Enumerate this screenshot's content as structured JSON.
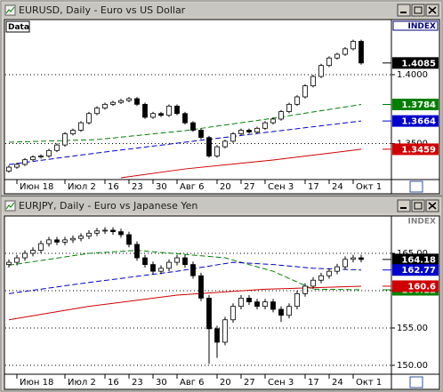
{
  "chart_data": [
    {
      "type": "candlestick",
      "title": "EURUSD, Daily - Euro vs US Dollar",
      "data_label": "Data",
      "axis_label": "INDEX",
      "categories": [
        null,
        "Июн 18",
        null,
        null,
        null,
        null,
        null,
        "Июл 2",
        null,
        null,
        null,
        null,
        "16",
        null,
        null,
        "23",
        null,
        null,
        "30",
        null,
        null,
        "Авг 6",
        null,
        null,
        null,
        null,
        "20",
        null,
        null,
        "27",
        null,
        null,
        "Сен 3",
        null,
        null,
        null,
        null,
        "17",
        null,
        null,
        "24",
        null,
        null,
        "Окт 1",
        null
      ],
      "open": [
        1.33,
        1.3329,
        1.3349,
        1.3383,
        1.3403,
        1.341,
        1.345,
        1.349,
        1.3571,
        1.3597,
        1.3651,
        1.3718,
        1.3758,
        1.3785,
        1.3799,
        1.3812,
        1.3826,
        1.3785,
        1.3691,
        1.3718,
        1.3705,
        1.3772,
        1.3718,
        1.3651,
        1.3597,
        1.3544,
        1.341,
        1.3477,
        1.3517,
        1.3571,
        1.3597,
        1.3584,
        1.3611,
        1.3651,
        1.3678,
        1.3732,
        1.3785,
        1.3839,
        1.3919,
        1.3987,
        1.4067,
        1.4121,
        1.4148,
        1.4188,
        1.4242
      ],
      "high": [
        1.3341,
        1.3361,
        1.3395,
        1.3415,
        1.3422,
        1.3462,
        1.3502,
        1.3583,
        1.3609,
        1.3663,
        1.373,
        1.377,
        1.3797,
        1.3811,
        1.3824,
        1.3838,
        1.3838,
        1.3797,
        1.373,
        1.373,
        1.3784,
        1.3784,
        1.373,
        1.3663,
        1.3609,
        1.3556,
        1.3489,
        1.3529,
        1.3583,
        1.3609,
        1.3609,
        1.3623,
        1.3663,
        1.369,
        1.3744,
        1.3797,
        1.3851,
        1.3931,
        1.3999,
        1.4079,
        1.4133,
        1.416,
        1.42,
        1.4254,
        1.4254
      ],
      "low": [
        1.3288,
        1.3317,
        1.3337,
        1.3371,
        1.3391,
        1.3398,
        1.3438,
        1.3478,
        1.3559,
        1.3585,
        1.3639,
        1.3706,
        1.3746,
        1.3773,
        1.3787,
        1.38,
        1.3773,
        1.3679,
        1.3679,
        1.3693,
        1.3693,
        1.3706,
        1.3639,
        1.3585,
        1.3532,
        1.3398,
        1.3398,
        1.3465,
        1.3505,
        1.3559,
        1.3572,
        1.3572,
        1.3599,
        1.3639,
        1.3666,
        1.372,
        1.3773,
        1.3827,
        1.3907,
        1.3975,
        1.4055,
        1.4109,
        1.4136,
        1.4176,
        1.4073
      ],
      "close": [
        1.3329,
        1.3349,
        1.3383,
        1.3403,
        1.341,
        1.345,
        1.349,
        1.3571,
        1.3597,
        1.3651,
        1.3718,
        1.3758,
        1.3785,
        1.3799,
        1.3812,
        1.3826,
        1.3785,
        1.3691,
        1.3718,
        1.3705,
        1.3772,
        1.3718,
        1.3651,
        1.3597,
        1.3544,
        1.341,
        1.3477,
        1.3517,
        1.3571,
        1.3597,
        1.3584,
        1.3611,
        1.3651,
        1.3678,
        1.3732,
        1.3785,
        1.3839,
        1.3919,
        1.3987,
        1.4067,
        1.4121,
        1.4148,
        1.4188,
        1.4242,
        1.4085
      ],
      "up_color": "#ffffff",
      "down_color": "#000000",
      "last_color": "#000000",
      "moving_averages": [
        {
          "color": "#008000",
          "dashed": true,
          "x": [
            0,
            11,
            22,
            33,
            44
          ],
          "values": [
            1.351,
            1.3529,
            1.3594,
            1.3684,
            1.3784
          ]
        },
        {
          "color": "#0000cc",
          "dashed": true,
          "x": [
            0,
            11,
            22,
            33,
            44
          ],
          "values": [
            1.3348,
            1.3432,
            1.351,
            1.3587,
            1.3664
          ]
        },
        {
          "color": "#d00000",
          "dashed": false,
          "x": [
            14,
            22,
            33,
            44
          ],
          "values": [
            1.3252,
            1.3316,
            1.3381,
            1.3459
          ]
        }
      ],
      "ylim": [
        1.3239,
        1.44
      ],
      "yticks": [
        {
          "value": 1.35,
          "label": "1.3500"
        },
        {
          "value": 1.4,
          "label": "1.4000"
        }
      ],
      "grid": true
    },
    {
      "type": "candlestick",
      "title": "EURJPY, Daily - Euro vs Japanese Yen",
      "axis_label": "INDEX",
      "categories": [
        null,
        "Июн 18",
        null,
        null,
        null,
        null,
        null,
        "Июл 2",
        null,
        null,
        null,
        null,
        "16",
        null,
        null,
        "23",
        null,
        null,
        "30",
        null,
        null,
        "Авг 6",
        null,
        null,
        null,
        null,
        "20",
        null,
        null,
        "27",
        null,
        null,
        "Сен 3",
        null,
        null,
        null,
        null,
        "17",
        null,
        null,
        "24",
        null,
        null,
        "Окт 1",
        null
      ],
      "open": [
        163.5,
        163.8,
        164.4,
        165.0,
        165.4,
        166.3,
        166.8,
        166.5,
        166.8,
        167.0,
        167.3,
        167.7,
        168.0,
        168.1,
        167.9,
        167.5,
        166.2,
        164.4,
        163.5,
        162.6,
        163.0,
        163.8,
        164.4,
        163.5,
        162.0,
        159.0,
        154.9,
        153.1,
        156.1,
        157.9,
        159.0,
        158.5,
        157.9,
        158.5,
        157.5,
        156.7,
        157.9,
        159.6,
        160.6,
        161.4,
        162.0,
        162.6,
        163.2,
        164.2,
        164.4
      ],
      "high": [
        164.2,
        164.8,
        165.4,
        165.8,
        166.7,
        167.2,
        167.2,
        167.2,
        167.4,
        167.7,
        168.1,
        168.4,
        168.5,
        168.5,
        168.3,
        167.9,
        166.6,
        164.8,
        163.9,
        163.4,
        164.2,
        164.8,
        164.8,
        163.9,
        162.4,
        159.4,
        155.3,
        156.5,
        158.3,
        159.4,
        159.4,
        158.9,
        158.9,
        158.9,
        157.9,
        158.3,
        160.0,
        161.0,
        161.8,
        162.4,
        163.0,
        163.6,
        164.6,
        164.8,
        164.8
      ],
      "low": [
        163.1,
        163.4,
        164.0,
        164.6,
        165.0,
        165.9,
        166.1,
        166.1,
        166.4,
        166.6,
        166.9,
        167.3,
        167.6,
        167.5,
        167.1,
        165.8,
        164.0,
        163.1,
        162.2,
        162.2,
        162.6,
        163.4,
        163.1,
        161.6,
        158.6,
        150.2,
        151.0,
        152.7,
        155.7,
        157.5,
        158.1,
        157.5,
        157.5,
        157.1,
        155.8,
        156.3,
        157.5,
        159.2,
        160.2,
        161.0,
        161.6,
        162.2,
        162.8,
        163.8,
        163.8
      ],
      "close": [
        163.8,
        164.4,
        165.0,
        165.4,
        166.3,
        166.8,
        166.5,
        166.8,
        167.0,
        167.3,
        167.7,
        168.0,
        168.1,
        167.9,
        167.5,
        166.2,
        164.4,
        163.5,
        162.6,
        163.0,
        163.8,
        164.4,
        163.5,
        162.0,
        159.0,
        154.9,
        153.1,
        156.1,
        157.9,
        159.0,
        158.5,
        157.9,
        158.5,
        157.5,
        156.7,
        157.9,
        159.6,
        160.6,
        161.4,
        162.0,
        162.6,
        163.2,
        164.2,
        164.4,
        164.18
      ],
      "up_color": "#ffffff",
      "down_color": "#000000",
      "last_color": "#000000",
      "moving_averages": [
        {
          "color": "#008000",
          "dashed": true,
          "x": [
            0,
            10,
            16,
            27,
            33,
            38,
            44
          ],
          "values": [
            163.4,
            165.0,
            165.4,
            164.4,
            162.6,
            160.2,
            160.12
          ]
        },
        {
          "color": "#0000cc",
          "dashed": true,
          "x": [
            0,
            10,
            21,
            28,
            33,
            38,
            44
          ],
          "values": [
            159.6,
            161.1,
            162.6,
            163.8,
            163.5,
            163.0,
            162.77
          ]
        },
        {
          "color": "#d00000",
          "dashed": false,
          "x": [
            0,
            10,
            21,
            32,
            44
          ],
          "values": [
            156.1,
            157.9,
            159.4,
            160.2,
            160.6
          ]
        }
      ],
      "ylim": [
        148.81,
        170.0
      ],
      "yticks": [
        {
          "value": 150,
          "label": "150.00"
        },
        {
          "value": 155,
          "label": "155.00"
        },
        {
          "value": 160,
          "label": "160.00"
        },
        {
          "value": 165,
          "label": "165.00"
        }
      ],
      "grid": true
    }
  ]
}
